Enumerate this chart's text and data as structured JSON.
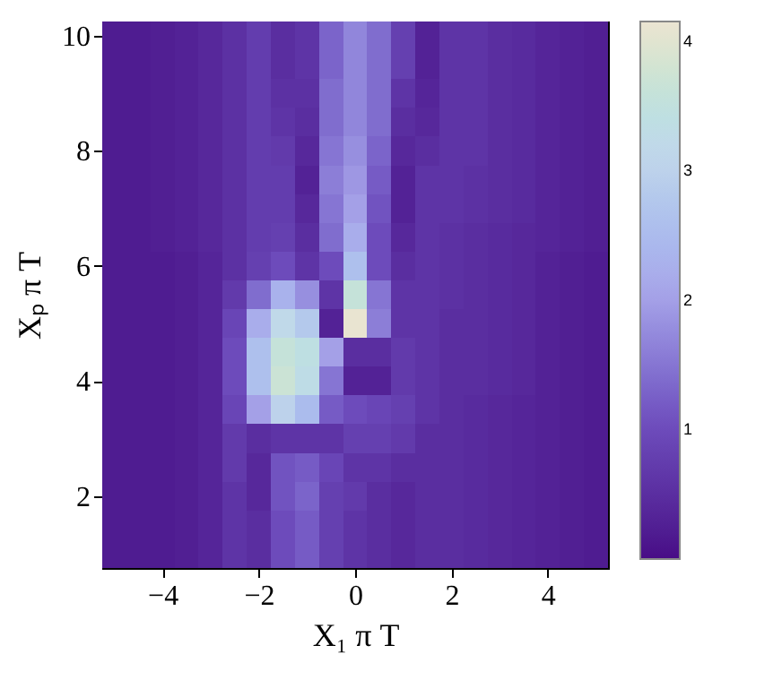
{
  "chart_data": {
    "type": "heatmap",
    "xlabel": "X₁ π T",
    "ylabel": "Xₚ π T",
    "categories": [
      null,
      null,
      "−4",
      null,
      null,
      null,
      "−2",
      null,
      null,
      null,
      "0",
      null,
      null,
      null,
      "2",
      null,
      null,
      null,
      "4",
      null,
      null
    ],
    "y_categories": [
      "10",
      null,
      null,
      null,
      "8",
      null,
      null,
      null,
      "6",
      null,
      null,
      null,
      "4",
      null,
      null,
      null,
      "2",
      null,
      null
    ],
    "cells": [
      [
        0.2,
        0.2,
        0.25,
        0.3,
        0.4,
        0.55,
        0.75,
        0.5,
        0.6,
        1.3,
        1.7,
        1.4,
        0.8,
        0.3,
        0.6,
        0.6,
        0.5,
        0.45,
        0.35,
        0.3,
        0.25
      ],
      [
        0.2,
        0.2,
        0.25,
        0.3,
        0.4,
        0.55,
        0.75,
        0.5,
        0.6,
        1.3,
        1.7,
        1.4,
        0.8,
        0.3,
        0.6,
        0.6,
        0.5,
        0.45,
        0.35,
        0.3,
        0.25
      ],
      [
        0.2,
        0.2,
        0.25,
        0.3,
        0.4,
        0.55,
        0.75,
        0.55,
        0.55,
        1.4,
        1.7,
        1.4,
        0.6,
        0.35,
        0.6,
        0.6,
        0.5,
        0.45,
        0.35,
        0.3,
        0.25
      ],
      [
        0.2,
        0.2,
        0.25,
        0.3,
        0.4,
        0.55,
        0.75,
        0.6,
        0.5,
        1.4,
        1.7,
        1.4,
        0.5,
        0.4,
        0.6,
        0.6,
        0.5,
        0.45,
        0.35,
        0.3,
        0.25
      ],
      [
        0.2,
        0.2,
        0.25,
        0.3,
        0.4,
        0.55,
        0.75,
        0.7,
        0.4,
        1.5,
        1.8,
        1.3,
        0.4,
        0.5,
        0.6,
        0.6,
        0.5,
        0.45,
        0.35,
        0.3,
        0.25
      ],
      [
        0.2,
        0.2,
        0.25,
        0.3,
        0.4,
        0.55,
        0.75,
        0.75,
        0.3,
        1.6,
        1.9,
        1.2,
        0.3,
        0.6,
        0.6,
        0.55,
        0.5,
        0.45,
        0.35,
        0.3,
        0.25
      ],
      [
        0.2,
        0.2,
        0.25,
        0.3,
        0.4,
        0.55,
        0.75,
        0.75,
        0.4,
        1.5,
        2.0,
        1.1,
        0.3,
        0.6,
        0.6,
        0.55,
        0.5,
        0.45,
        0.35,
        0.3,
        0.25
      ],
      [
        0.2,
        0.2,
        0.25,
        0.3,
        0.4,
        0.55,
        0.75,
        0.8,
        0.5,
        1.4,
        2.2,
        1.0,
        0.4,
        0.6,
        0.55,
        0.5,
        0.45,
        0.4,
        0.35,
        0.3,
        0.25
      ],
      [
        0.2,
        0.2,
        0.2,
        0.25,
        0.35,
        0.55,
        0.8,
        1.0,
        0.6,
        1.0,
        2.6,
        1.0,
        0.5,
        0.6,
        0.55,
        0.5,
        0.45,
        0.4,
        0.3,
        0.25,
        0.2
      ],
      [
        0.2,
        0.2,
        0.2,
        0.25,
        0.35,
        0.7,
        1.4,
        2.3,
        1.8,
        0.6,
        3.6,
        1.5,
        0.6,
        0.6,
        0.55,
        0.5,
        0.45,
        0.4,
        0.3,
        0.25,
        0.2
      ],
      [
        0.2,
        0.2,
        0.2,
        0.25,
        0.35,
        0.9,
        2.2,
        3.2,
        2.8,
        0.3,
        4.1,
        1.6,
        0.6,
        0.6,
        0.5,
        0.5,
        0.45,
        0.4,
        0.3,
        0.25,
        0.2
      ],
      [
        0.2,
        0.2,
        0.2,
        0.25,
        0.35,
        1.0,
        2.6,
        3.6,
        3.4,
        2.0,
        0.5,
        0.5,
        0.7,
        0.6,
        0.5,
        0.5,
        0.45,
        0.4,
        0.3,
        0.25,
        0.2
      ],
      [
        0.2,
        0.2,
        0.2,
        0.25,
        0.35,
        1.0,
        2.6,
        3.7,
        3.3,
        1.5,
        0.3,
        0.3,
        0.7,
        0.6,
        0.5,
        0.5,
        0.45,
        0.4,
        0.3,
        0.25,
        0.2
      ],
      [
        0.2,
        0.2,
        0.2,
        0.25,
        0.35,
        0.9,
        2.0,
        3.0,
        2.5,
        1.2,
        1.0,
        0.9,
        0.8,
        0.6,
        0.5,
        0.45,
        0.4,
        0.35,
        0.3,
        0.25,
        0.2
      ],
      [
        0.2,
        0.2,
        0.2,
        0.25,
        0.35,
        0.7,
        0.5,
        0.6,
        0.6,
        0.6,
        0.8,
        0.8,
        0.7,
        0.5,
        0.5,
        0.45,
        0.4,
        0.35,
        0.3,
        0.25,
        0.2
      ],
      [
        0.2,
        0.2,
        0.2,
        0.25,
        0.35,
        0.7,
        0.4,
        1.1,
        1.2,
        0.9,
        0.6,
        0.6,
        0.5,
        0.5,
        0.5,
        0.45,
        0.4,
        0.35,
        0.3,
        0.25,
        0.2
      ],
      [
        0.2,
        0.2,
        0.2,
        0.25,
        0.35,
        0.6,
        0.4,
        1.1,
        1.3,
        0.8,
        0.7,
        0.5,
        0.4,
        0.5,
        0.5,
        0.45,
        0.4,
        0.35,
        0.3,
        0.25,
        0.2
      ],
      [
        0.2,
        0.2,
        0.2,
        0.25,
        0.35,
        0.6,
        0.5,
        1.0,
        1.2,
        0.8,
        0.6,
        0.5,
        0.4,
        0.5,
        0.5,
        0.45,
        0.4,
        0.35,
        0.3,
        0.25,
        0.2
      ],
      [
        0.2,
        0.2,
        0.2,
        0.25,
        0.35,
        0.6,
        0.5,
        1.0,
        1.2,
        0.8,
        0.6,
        0.5,
        0.4,
        0.5,
        0.5,
        0.45,
        0.4,
        0.35,
        0.3,
        0.25,
        0.2
      ]
    ],
    "clim": [
      0,
      4.15
    ],
    "cticks": [
      1,
      2,
      3,
      4
    ]
  }
}
